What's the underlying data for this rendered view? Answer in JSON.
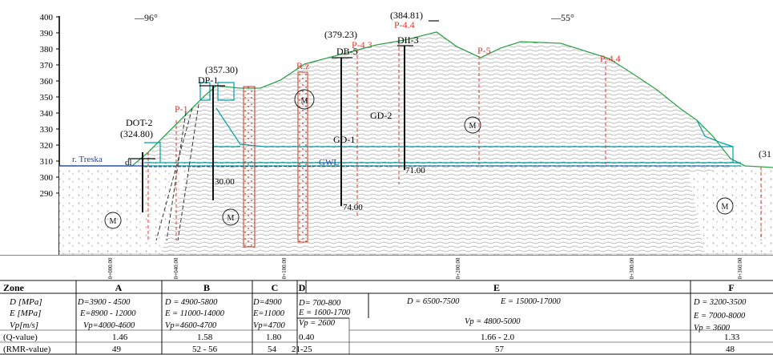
{
  "elevation_axis": [
    "400",
    "390",
    "380",
    "370",
    "360",
    "350",
    "340",
    "330",
    "320",
    "310",
    "300",
    "290"
  ],
  "dips": {
    "left": "96°",
    "right": "55°"
  },
  "river": "r. Treska",
  "gwl": "GWL",
  "boreholes": {
    "dot2": {
      "name": "DOT-2",
      "elev": "(324.80)"
    },
    "dp1": {
      "name": "DP-1",
      "elev": "(357.30)",
      "depth": "30.00"
    },
    "db5": {
      "name": "DB-5",
      "elev": "(379.23)",
      "depth": "74.00"
    },
    "dii3": {
      "name": "DII-3",
      "elev": "(384.81)",
      "depth": "71.00"
    }
  },
  "red_labels": {
    "p1": "P-1",
    "rz": "R.z",
    "p43": "P-4.3",
    "p44_top": "P-4.4",
    "p5": "P-5",
    "p44_right": "P-4.4",
    "right_edge_elev": "(31"
  },
  "geo_labels": {
    "gd1": "GD-1",
    "gd2": "GD-2",
    "dl": "dl",
    "m": "M"
  },
  "stations": [
    "0+000.00",
    "0+040.00",
    "0+100.00",
    "0+200.00",
    "0+300.00",
    "0+360.00"
  ],
  "zones_header": "Zone",
  "row_labels": {
    "d": "D [MPa]",
    "e": "E [MPa]",
    "vp": "Vp[m/s]",
    "q": "(Q-value)",
    "rmr": "(RMR-value)"
  },
  "zones": [
    {
      "name": "A",
      "d": "D=3900 - 4500",
      "e": "E=8900 - 12000",
      "vp": "Vp=4000-4600",
      "q": "1.46",
      "rmr": "49"
    },
    {
      "name": "B",
      "d": "D = 4900-5800",
      "e": "E = 11000-14000",
      "vp": "Vp=4600-4700",
      "q": "1.58",
      "rmr": "52 - 56"
    },
    {
      "name": "C",
      "d": "D=4900",
      "e": "E=11000",
      "vp": "Vp=4700",
      "q": "1.80",
      "rmr": "54"
    },
    {
      "name": "D",
      "d": "D= 700-800",
      "e": "E = 1600-1700",
      "vp": "Vp = 2600",
      "q": "0.40",
      "rmr": "21-25"
    },
    {
      "name": "E",
      "d": "D = 6500-7500",
      "e": "E = 15000-17000",
      "vp": "Vp = 4800-5000",
      "q": "1.66 - 2.0",
      "rmr": "57"
    },
    {
      "name": "F",
      "d": "D = 3200-3500",
      "e": "E = 7000-8000",
      "vp": "Vp = 3600",
      "q": "1.33",
      "rmr": "48"
    }
  ],
  "colors": {
    "accent": "#00a0a8",
    "red": "#e0342a",
    "green": "#2fa24a",
    "blue": "#1f3fa8"
  }
}
